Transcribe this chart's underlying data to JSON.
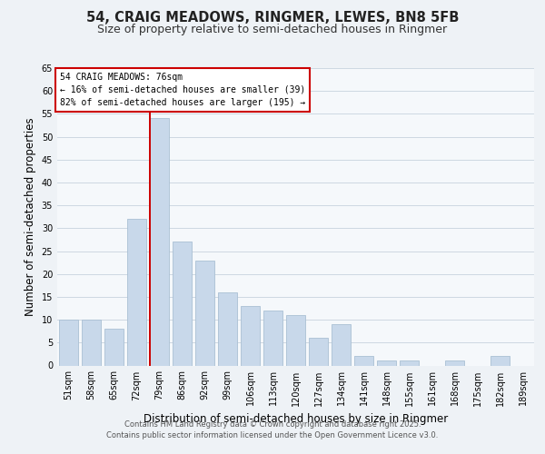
{
  "title": "54, CRAIG MEADOWS, RINGMER, LEWES, BN8 5FB",
  "subtitle": "Size of property relative to semi-detached houses in Ringmer",
  "xlabel": "Distribution of semi-detached houses by size in Ringmer",
  "ylabel": "Number of semi-detached properties",
  "bar_labels": [
    "51sqm",
    "58sqm",
    "65sqm",
    "72sqm",
    "79sqm",
    "86sqm",
    "92sqm",
    "99sqm",
    "106sqm",
    "113sqm",
    "120sqm",
    "127sqm",
    "134sqm",
    "141sqm",
    "148sqm",
    "155sqm",
    "161sqm",
    "168sqm",
    "175sqm",
    "182sqm",
    "189sqm"
  ],
  "bar_values": [
    10,
    10,
    8,
    32,
    54,
    27,
    23,
    16,
    13,
    12,
    11,
    6,
    9,
    2,
    1,
    1,
    0,
    1,
    0,
    2,
    0
  ],
  "bar_color": "#c8d8ea",
  "bar_edge_color": "#aac0d4",
  "highlight_line_index": 4,
  "highlight_line_color": "#cc0000",
  "ylim": [
    0,
    65
  ],
  "yticks": [
    0,
    5,
    10,
    15,
    20,
    25,
    30,
    35,
    40,
    45,
    50,
    55,
    60,
    65
  ],
  "annotation_title": "54 CRAIG MEADOWS: 76sqm",
  "annotation_line1": "← 16% of semi-detached houses are smaller (39)",
  "annotation_line2": "82% of semi-detached houses are larger (195) →",
  "annotation_box_color": "#ffffff",
  "annotation_box_edge": "#cc0000",
  "bg_color": "#eef2f6",
  "plot_bg_color": "#f5f8fb",
  "grid_color": "#cdd8e2",
  "footer1": "Contains HM Land Registry data © Crown copyright and database right 2025.",
  "footer2": "Contains public sector information licensed under the Open Government Licence v3.0.",
  "title_fontsize": 10.5,
  "subtitle_fontsize": 9,
  "tick_fontsize": 7,
  "label_fontsize": 8.5,
  "annotation_fontsize": 7,
  "footer_fontsize": 6
}
